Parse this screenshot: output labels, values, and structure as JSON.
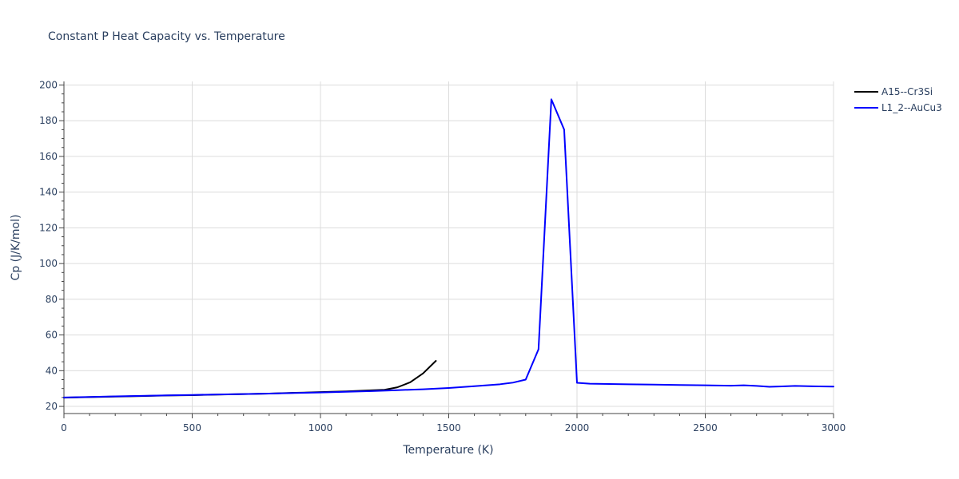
{
  "chart_data": {
    "type": "line",
    "title": "Constant P Heat Capacity vs. Temperature",
    "xlabel": "Temperature (K)",
    "ylabel": "Cp (J/K/mol)",
    "xlim": [
      0,
      3000
    ],
    "ylim": [
      16,
      202
    ],
    "x_ticks": [
      0,
      500,
      1000,
      1500,
      2000,
      2500,
      3000
    ],
    "y_ticks": [
      20,
      40,
      60,
      80,
      100,
      120,
      140,
      160,
      180,
      200
    ],
    "grid": true,
    "legend_position": "top-right",
    "series": [
      {
        "name": "A15--Cr3Si",
        "color": "#000000",
        "x": [
          0,
          100,
          200,
          300,
          400,
          500,
          600,
          700,
          800,
          900,
          1000,
          1100,
          1200,
          1250,
          1300,
          1350,
          1400,
          1450
        ],
        "y": [
          24.9,
          25.2,
          25.5,
          25.8,
          26.1,
          26.3,
          26.6,
          26.9,
          27.2,
          27.6,
          28.0,
          28.4,
          29.0,
          29.3,
          30.7,
          33.5,
          38.5,
          45.5
        ]
      },
      {
        "name": "L1_2--AuCu3",
        "color": "#0000ff",
        "x": [
          0,
          100,
          200,
          300,
          400,
          500,
          600,
          700,
          800,
          900,
          1000,
          1100,
          1200,
          1300,
          1400,
          1500,
          1600,
          1700,
          1750,
          1800,
          1850,
          1900,
          1950,
          2000,
          2050,
          2100,
          2200,
          2300,
          2400,
          2500,
          2600,
          2650,
          2700,
          2750,
          2800,
          2850,
          2900,
          3000
        ],
        "y": [
          25.0,
          25.3,
          25.6,
          25.9,
          26.2,
          26.4,
          26.7,
          26.9,
          27.2,
          27.5,
          27.8,
          28.2,
          28.6,
          29.1,
          29.6,
          30.3,
          31.3,
          32.4,
          33.3,
          35.0,
          52.0,
          192.0,
          175.0,
          33.2,
          32.7,
          32.6,
          32.4,
          32.2,
          32.0,
          31.8,
          31.6,
          31.8,
          31.5,
          31.0,
          31.2,
          31.5,
          31.3,
          31.1
        ]
      }
    ]
  }
}
